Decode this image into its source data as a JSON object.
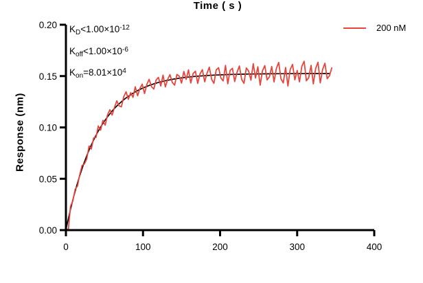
{
  "chart_data": {
    "type": "line",
    "title": "",
    "xlabel": "Time ( s )",
    "ylabel": "Response (nm)",
    "xlim": [
      0,
      400
    ],
    "ylim": [
      0,
      0.2
    ],
    "xticks": [
      0,
      100,
      200,
      300,
      400
    ],
    "yticks": [
      "0.00",
      "0.05",
      "0.10",
      "0.15",
      "0.20"
    ],
    "grid": false,
    "legend_position": "top-right",
    "annotations": [
      {
        "base": "K",
        "sub": "D",
        "mid": "<1.00×10",
        "sup": "-12"
      },
      {
        "base": "K",
        "sub": "off",
        "mid": "<1.00×10",
        "sup": "-6"
      },
      {
        "base": "K",
        "sub": "on",
        "mid": "=8.01×10",
        "sup": "4"
      }
    ],
    "series": [
      {
        "name": "200 nM",
        "role": "measured",
        "color": "#e6453c",
        "model": {
          "type": "one-phase-association",
          "plateau_nm": 0.1525,
          "tau_s": 42,
          "t_start_s": 0,
          "dt_s": 3,
          "t_end_s": 345
        },
        "noise_milli_nm": [
          2,
          -11,
          3,
          -1,
          2,
          -3,
          1,
          3,
          -2,
          -3,
          4,
          -4,
          2,
          -2,
          5,
          -3,
          3,
          -5,
          2,
          4,
          -4,
          1,
          5,
          -2,
          -5,
          3,
          6,
          -3,
          2,
          -4,
          5,
          -5,
          1,
          4,
          -6,
          2,
          6,
          -2,
          -5,
          3,
          5,
          -4,
          6,
          -6,
          1,
          5,
          -3,
          -6,
          4,
          2,
          -5,
          6,
          -2,
          7,
          -6,
          3,
          5,
          -7,
          2,
          6,
          -6,
          2,
          8,
          -4,
          -8,
          5,
          7,
          -3,
          -6,
          9,
          -9,
          4,
          6,
          -7,
          2,
          8,
          -5,
          -9,
          6,
          3,
          -6,
          10,
          -4,
          7,
          -11,
          3,
          8,
          -6,
          -3,
          7,
          -8,
          5,
          11,
          -5,
          -9,
          6,
          -12,
          4,
          9,
          -6,
          3,
          -8,
          7,
          12,
          -7,
          -4,
          8,
          -10,
          5,
          11,
          -9,
          4,
          10,
          -5,
          -2,
          6
        ]
      },
      {
        "name": "fit",
        "role": "fit",
        "color": "#000000",
        "model": {
          "type": "one-phase-association",
          "plateau_nm": 0.1525,
          "tau_s": 42,
          "t_start_s": 0,
          "dt_s": 2,
          "t_end_s": 341
        }
      }
    ],
    "axis_color": "#000000",
    "background_color": "#ffffff"
  }
}
